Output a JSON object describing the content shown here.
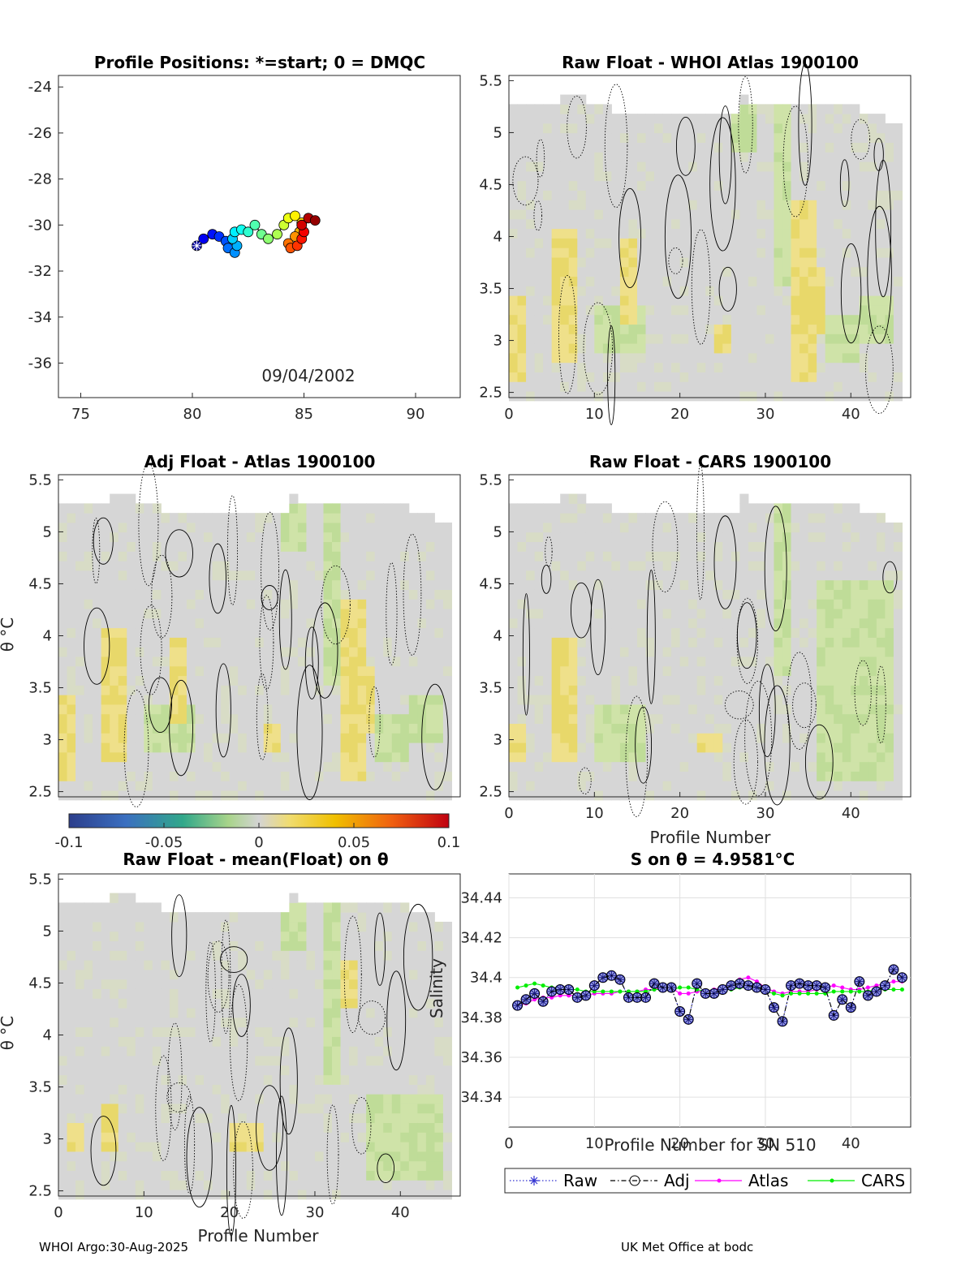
{
  "footer": {
    "left": "WHOI Argo:30-Aug-2025",
    "right": "UK Met Office at bodc"
  },
  "colorbar": {
    "ticks": [
      "-0.1",
      "-0.05",
      "0",
      "0.05",
      "0.1"
    ]
  },
  "chart_data": [
    {
      "type": "scatter",
      "title": "Profile Positions: *=start; 0 = DMQC",
      "xlim": [
        74,
        92
      ],
      "ylim": [
        -37.5,
        -23.5
      ],
      "xticks": [
        "75",
        "80",
        "85",
        "90"
      ],
      "yticks": [
        "-24",
        "-26",
        "-28",
        "-30",
        "-32",
        "-34",
        "-36"
      ],
      "date_label": "09/04/2002",
      "start_marker": [
        80.2,
        -30.9
      ],
      "track": [
        [
          80.2,
          -30.9
        ],
        [
          80.5,
          -30.6
        ],
        [
          80.9,
          -30.4
        ],
        [
          81.2,
          -30.5
        ],
        [
          81.5,
          -30.7
        ],
        [
          81.6,
          -31.0
        ],
        [
          81.9,
          -31.2
        ],
        [
          82.0,
          -30.9
        ],
        [
          81.8,
          -30.6
        ],
        [
          81.9,
          -30.3
        ],
        [
          82.2,
          -30.2
        ],
        [
          82.5,
          -30.3
        ],
        [
          82.8,
          -30.0
        ],
        [
          83.1,
          -30.4
        ],
        [
          83.4,
          -30.6
        ],
        [
          83.8,
          -30.4
        ],
        [
          84.1,
          -30.0
        ],
        [
          84.3,
          -29.7
        ],
        [
          84.6,
          -29.6
        ],
        [
          84.9,
          -29.9
        ],
        [
          84.8,
          -30.3
        ],
        [
          84.6,
          -30.5
        ],
        [
          84.3,
          -30.8
        ],
        [
          84.4,
          -31.0
        ],
        [
          84.7,
          -30.9
        ],
        [
          84.9,
          -30.6
        ],
        [
          85.0,
          -30.3
        ],
        [
          84.9,
          -30.0
        ],
        [
          85.2,
          -29.7
        ],
        [
          85.5,
          -29.8
        ]
      ]
    },
    {
      "type": "heatmap",
      "title": "Raw Float - WHOI Atlas  1900100",
      "xticks": [
        "0",
        "10",
        "20",
        "30",
        "40"
      ],
      "yticks": [
        "2.5",
        "3",
        "3.5",
        "4",
        "4.5",
        "5",
        "5.5"
      ],
      "xlim": [
        0,
        47
      ],
      "ylim": [
        2.45,
        5.55
      ]
    },
    {
      "type": "heatmap",
      "title": "Adj Float - Atlas  1900100",
      "ylabel": "θ °C",
      "yticks": [
        "2.5",
        "3",
        "3.5",
        "4",
        "4.5",
        "5",
        "5.5"
      ],
      "xlim": [
        0,
        47
      ],
      "ylim": [
        2.45,
        5.55
      ]
    },
    {
      "type": "heatmap",
      "title": "Raw Float - CARS  1900100",
      "xlabel": "Profile Number",
      "xticks": [
        "0",
        "10",
        "20",
        "30",
        "40"
      ],
      "yticks": [
        "2.5",
        "3",
        "3.5",
        "4",
        "4.5",
        "5",
        "5.5"
      ],
      "xlim": [
        0,
        47
      ],
      "ylim": [
        2.45,
        5.55
      ]
    },
    {
      "type": "heatmap",
      "title": "Raw Float - mean(Float) on θ",
      "ylabel": "θ °C",
      "xlabel": "Profile Number",
      "xticks": [
        "0",
        "10",
        "20",
        "30",
        "40"
      ],
      "yticks": [
        "2.5",
        "3",
        "3.5",
        "4",
        "4.5",
        "5",
        "5.5"
      ],
      "xlim": [
        0,
        47
      ],
      "ylim": [
        2.45,
        5.55
      ]
    },
    {
      "type": "line",
      "title": "S on θ = 4.9581°C",
      "xlabel": "Profile Number for SN 510",
      "ylabel": "Salinity",
      "xticks": [
        "0",
        "10",
        "20",
        "30",
        "40"
      ],
      "yticks": [
        "34.34",
        "34.36",
        "34.38",
        "34.4",
        "34.42",
        "34.44"
      ],
      "xlim": [
        0,
        47
      ],
      "ylim": [
        34.325,
        34.452
      ],
      "x": [
        1,
        2,
        3,
        4,
        5,
        6,
        7,
        8,
        9,
        10,
        11,
        12,
        13,
        14,
        15,
        16,
        17,
        18,
        19,
        20,
        21,
        22,
        23,
        24,
        25,
        26,
        27,
        28,
        29,
        30,
        31,
        32,
        33,
        34,
        35,
        36,
        37,
        38,
        39,
        40,
        41,
        42,
        43,
        44,
        45,
        46
      ],
      "series": [
        {
          "name": "Raw",
          "values": [
            34.386,
            34.389,
            34.392,
            34.388,
            34.393,
            34.394,
            34.394,
            34.39,
            34.391,
            34.396,
            34.4,
            34.401,
            34.399,
            34.39,
            34.39,
            34.39,
            34.397,
            34.395,
            34.395,
            34.383,
            34.379,
            34.397,
            34.392,
            34.392,
            34.394,
            34.396,
            34.397,
            34.396,
            34.395,
            34.394,
            34.385,
            34.378,
            34.396,
            34.397,
            34.396,
            34.396,
            34.395,
            34.381,
            34.389,
            34.385,
            34.398,
            34.391,
            34.393,
            34.396,
            34.404,
            34.4
          ]
        },
        {
          "name": "Adj",
          "values": [
            34.386,
            34.389,
            34.392,
            34.388,
            34.393,
            34.394,
            34.394,
            34.39,
            34.391,
            34.396,
            34.4,
            34.401,
            34.399,
            34.39,
            34.39,
            34.39,
            34.397,
            34.395,
            34.395,
            34.383,
            34.379,
            34.397,
            34.392,
            34.392,
            34.394,
            34.396,
            34.397,
            34.396,
            34.395,
            34.394,
            34.385,
            34.378,
            34.396,
            34.397,
            34.396,
            34.396,
            34.395,
            34.381,
            34.389,
            34.385,
            34.398,
            34.391,
            34.393,
            34.396,
            34.404,
            34.4
          ]
        },
        {
          "name": "Atlas",
          "values": [
            34.386,
            34.387,
            34.389,
            34.39,
            34.39,
            34.391,
            34.391,
            34.391,
            34.391,
            34.392,
            34.392,
            34.392,
            34.393,
            34.393,
            34.393,
            34.394,
            34.394,
            34.395,
            34.395,
            34.392,
            34.392,
            34.393,
            34.393,
            34.394,
            34.395,
            34.396,
            34.399,
            34.4,
            34.398,
            34.395,
            34.393,
            34.392,
            34.393,
            34.393,
            34.393,
            34.394,
            34.395,
            34.396,
            34.395,
            34.394,
            34.394,
            34.395,
            34.396,
            34.397,
            34.398,
            34.398
          ]
        },
        {
          "name": "CARS",
          "values": [
            34.395,
            34.396,
            34.397,
            34.396,
            34.395,
            34.395,
            34.394,
            34.394,
            34.393,
            34.393,
            34.393,
            34.393,
            34.393,
            34.393,
            34.393,
            34.393,
            34.394,
            34.394,
            34.394,
            34.395,
            34.395,
            34.394,
            34.393,
            34.393,
            34.394,
            34.394,
            34.395,
            34.395,
            34.394,
            34.393,
            34.392,
            34.391,
            34.392,
            34.392,
            34.392,
            34.392,
            34.392,
            34.393,
            34.393,
            34.393,
            34.393,
            34.393,
            34.394,
            34.394,
            34.394,
            34.394
          ]
        }
      ],
      "legend": [
        "Raw",
        "Adj",
        "Atlas",
        "CARS"
      ]
    }
  ]
}
